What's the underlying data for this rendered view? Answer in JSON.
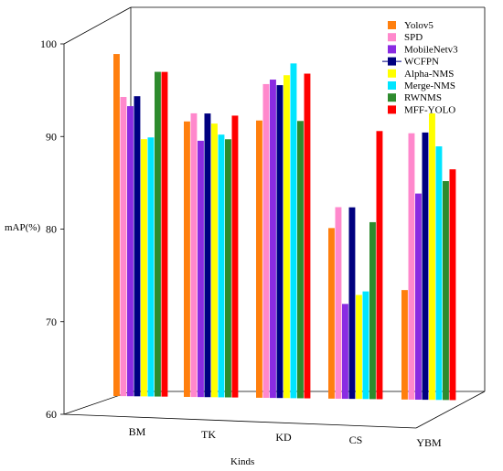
{
  "chart_data": {
    "type": "bar",
    "title": "",
    "xlabel": "Kinds",
    "ylabel": "mAP(%)",
    "ylim": [
      60,
      100
    ],
    "yticks": [
      60,
      70,
      80,
      90,
      100
    ],
    "categories": [
      "BM",
      "TK",
      "KD",
      "CS",
      "YBM"
    ],
    "legend_position": "top-right",
    "grid": false,
    "series": [
      {
        "name": "Yolov5",
        "color": "#ff7f0e",
        "values": [
          97.5,
          90.2,
          90.4,
          78.7,
          72.0
        ]
      },
      {
        "name": "SPD",
        "color": "#ff88cc",
        "values": [
          92.8,
          91.1,
          94.4,
          81.0,
          89.2
        ]
      },
      {
        "name": "MobileNetv3",
        "color": "#8a2be2",
        "values": [
          91.8,
          88.1,
          94.9,
          70.4,
          82.6
        ]
      },
      {
        "name": "WCFPN",
        "color": "#000080",
        "values": [
          92.9,
          91.1,
          94.3,
          81.0,
          89.3
        ]
      },
      {
        "name": "Alpha-NMS",
        "color": "#ffff00",
        "values": [
          88.2,
          90.0,
          95.4,
          71.4,
          91.4
        ]
      },
      {
        "name": "Merge-NMS",
        "color": "#00e5ff",
        "values": [
          88.4,
          88.8,
          96.7,
          71.8,
          87.8
        ]
      },
      {
        "name": "RWNMS",
        "color": "#2e8b2e",
        "values": [
          95.6,
          88.3,
          90.4,
          79.4,
          84.0
        ]
      },
      {
        "name": "MFF-YOLO",
        "color": "#ff0000",
        "values": [
          95.6,
          90.9,
          95.6,
          89.4,
          85.3
        ]
      }
    ]
  }
}
